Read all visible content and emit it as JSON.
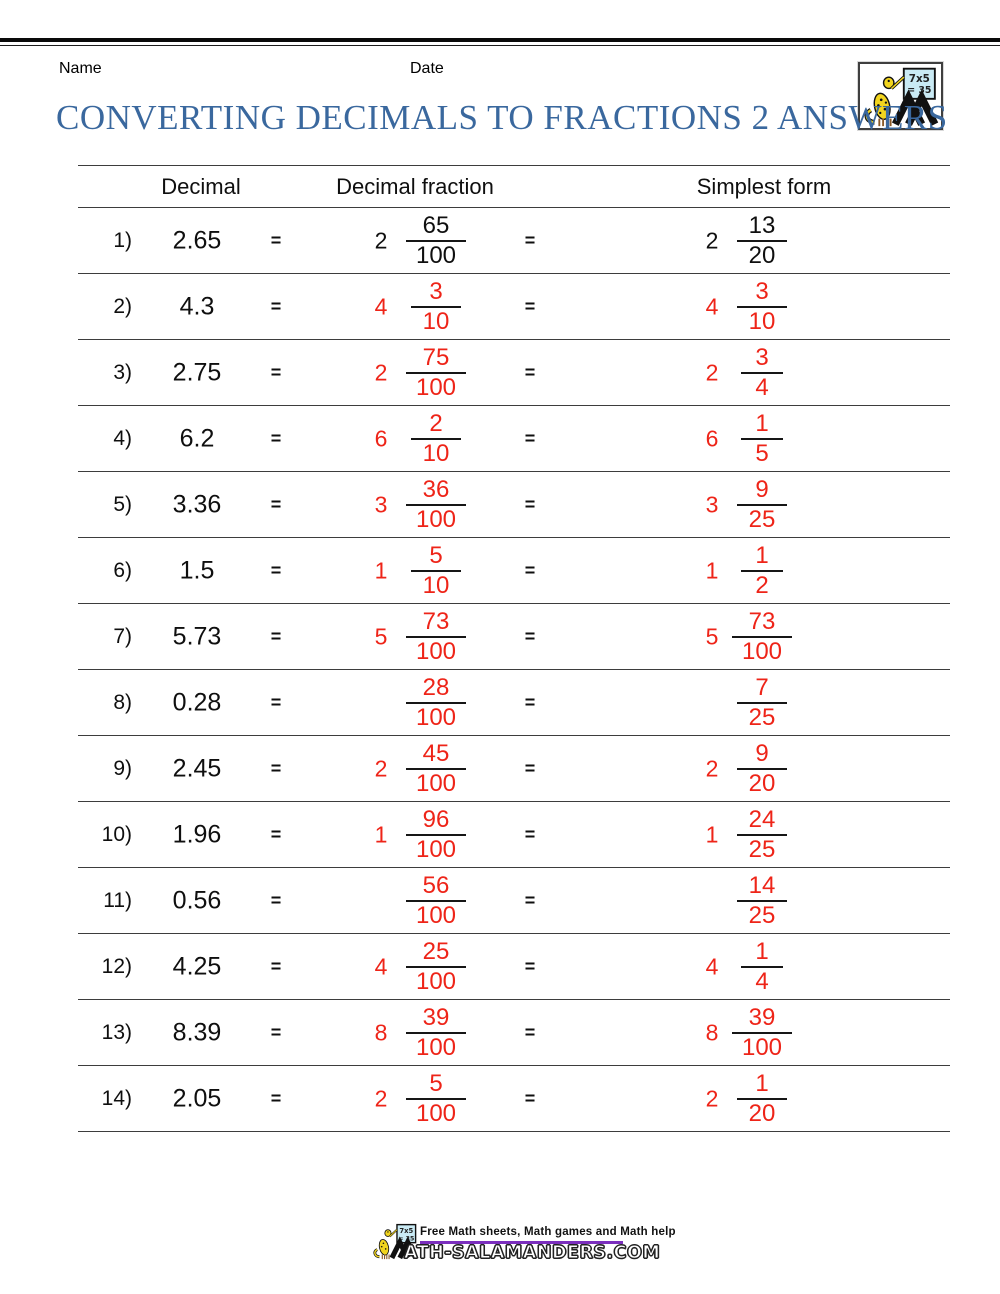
{
  "header": {
    "name_label": "Name",
    "date_label": "Date",
    "title": "CONVERTING DECIMALS TO FRACTIONS 2 ANSWERS"
  },
  "logo": {
    "board_line1": "7x5",
    "board_line2": "= 35"
  },
  "table": {
    "headers": [
      "Decimal",
      "Decimal fraction",
      "Simplest form"
    ],
    "equals": "=",
    "rows": [
      {
        "n": "1)",
        "decimal": "2.65",
        "w1": "2",
        "n1": "65",
        "d1": "100",
        "w2": "2",
        "n2": "13",
        "d2": "20",
        "example": true
      },
      {
        "n": "2)",
        "decimal": "4.3",
        "w1": "4",
        "n1": "3",
        "d1": "10",
        "w2": "4",
        "n2": "3",
        "d2": "10"
      },
      {
        "n": "3)",
        "decimal": "2.75",
        "w1": "2",
        "n1": "75",
        "d1": "100",
        "w2": "2",
        "n2": "3",
        "d2": "4"
      },
      {
        "n": "4)",
        "decimal": "6.2",
        "w1": "6",
        "n1": "2",
        "d1": "10",
        "w2": "6",
        "n2": "1",
        "d2": "5"
      },
      {
        "n": "5)",
        "decimal": "3.36",
        "w1": "3",
        "n1": "36",
        "d1": "100",
        "w2": "3",
        "n2": "9",
        "d2": "25"
      },
      {
        "n": "6)",
        "decimal": "1.5",
        "w1": "1",
        "n1": "5",
        "d1": "10",
        "w2": "1",
        "n2": "1",
        "d2": "2"
      },
      {
        "n": "7)",
        "decimal": "5.73",
        "w1": "5",
        "n1": "73",
        "d1": "100",
        "w2": "5",
        "n2": "73",
        "d2": "100"
      },
      {
        "n": "8)",
        "decimal": "0.28",
        "w1": "",
        "n1": "28",
        "d1": "100",
        "w2": "",
        "n2": "7",
        "d2": "25"
      },
      {
        "n": "9)",
        "decimal": "2.45",
        "w1": "2",
        "n1": "45",
        "d1": "100",
        "w2": "2",
        "n2": "9",
        "d2": "20"
      },
      {
        "n": "10)",
        "decimal": "1.96",
        "w1": "1",
        "n1": "96",
        "d1": "100",
        "w2": "1",
        "n2": "24",
        "d2": "25"
      },
      {
        "n": "11)",
        "decimal": "0.56",
        "w1": "",
        "n1": "56",
        "d1": "100",
        "w2": "",
        "n2": "14",
        "d2": "25"
      },
      {
        "n": "12)",
        "decimal": "4.25",
        "w1": "4",
        "n1": "25",
        "d1": "100",
        "w2": "4",
        "n2": "1",
        "d2": "4"
      },
      {
        "n": "13)",
        "decimal": "8.39",
        "w1": "8",
        "n1": "39",
        "d1": "100",
        "w2": "8",
        "n2": "39",
        "d2": "100"
      },
      {
        "n": "14)",
        "decimal": "2.05",
        "w1": "2",
        "n1": "5",
        "d1": "100",
        "w2": "2",
        "n2": "1",
        "d2": "20"
      }
    ]
  },
  "footer": {
    "tagline": "Free Math sheets, Math games and Math help",
    "site": "ATH-SALAMANDERS.COM"
  },
  "colors": {
    "title_blue": "#3a689e",
    "answer_red": "#ee2418",
    "underline_purple": "#7b2fbe",
    "line_gray": "#3d3d3d"
  }
}
